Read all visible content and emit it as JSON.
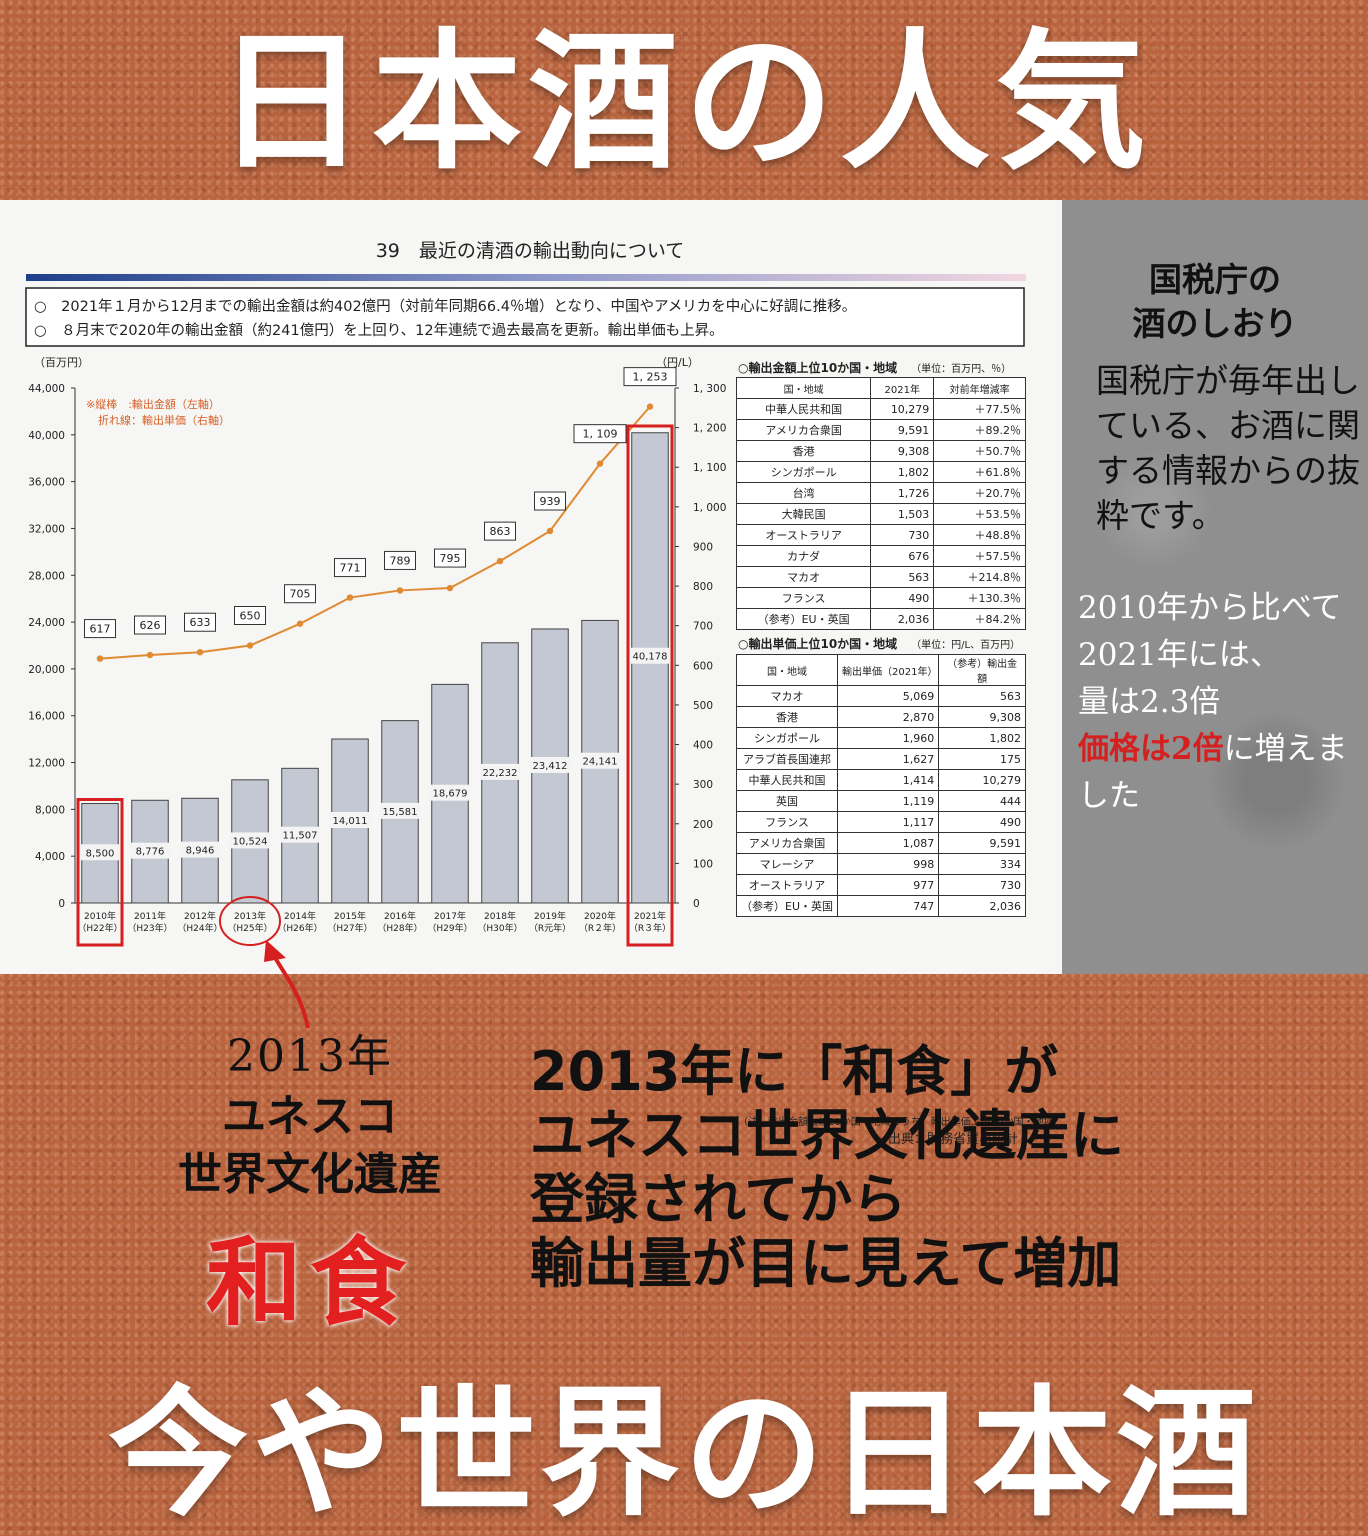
{
  "headline_top": "日本酒の人気",
  "headline_bottom": "今や世界の日本酒",
  "doc": {
    "title": "39　最近の清酒の輸出動向について",
    "bullets": [
      "○　2021年１月から12月までの輸出金額は約402億円（対前年同期66.4％増）となり、中国やアメリカを中心に好調に推移。",
      "○　８月末で2020年の輸出金額（約241億円）を上回り、12年連続で過去最高を更新。輸出単価も上昇。"
    ],
    "left_unit": "（百万円）",
    "right_unit": "（円/L）",
    "legend_lines": [
      "※縦棒　:輸出金額（左軸）",
      "折れ線：輸出単価（右軸）"
    ],
    "source": "出典：財務省貿易統計",
    "note": "（注）輸出金額上位20か国・地域のうち、輸出単価上位10か国・地域"
  },
  "chart_data": {
    "type": "bar",
    "categories": [
      "2010年\n（H22年）",
      "2011年\n（H23年）",
      "2012年\n（H24年）",
      "2013年\n（H25年）",
      "2014年\n（H26年）",
      "2015年\n（H27年）",
      "2016年\n（H28年）",
      "2017年\n（H29年）",
      "2018年\n（H30年）",
      "2019年\n（R元年）",
      "2020年\n（R２年）",
      "2021年\n（R３年）"
    ],
    "series": [
      {
        "name": "輸出金額（左軸）",
        "type": "bar",
        "values": [
          8500,
          8776,
          8946,
          10524,
          11507,
          14011,
          15581,
          18679,
          22232,
          23412,
          24141,
          40178
        ]
      },
      {
        "name": "輸出単価（右軸）",
        "type": "line",
        "axis": "right",
        "values": [
          617,
          626,
          633,
          650,
          705,
          771,
          789,
          795,
          863,
          939,
          1109,
          1253
        ]
      }
    ],
    "ylim": [
      0,
      44000
    ],
    "yticks": [
      "0",
      "4,000",
      "8,000",
      "12,000",
      "16,000",
      "20,000",
      "24,000",
      "28,000",
      "32,000",
      "36,000",
      "40,000",
      "44,000"
    ],
    "y2lim": [
      0,
      1300
    ],
    "y2ticks": [
      "0",
      "100",
      "200",
      "300",
      "400",
      "500",
      "600",
      "700",
      "800",
      "900",
      "1, 000",
      "1, 100",
      "1, 200",
      "1, 300"
    ],
    "bar_labels": [
      "8,500",
      "8,776",
      "8,946",
      "10,524",
      "11,507",
      "14,011",
      "15,581",
      "18,679",
      "22,232",
      "23,412",
      "24,141",
      "40,178"
    ],
    "line_labels": [
      "617",
      "626",
      "633",
      "650",
      "705",
      "771",
      "789",
      "795",
      "863",
      "939",
      "1, 109",
      "1, 253"
    ],
    "highlighted": [
      "2010年\n（H22年）",
      "2021年\n（R３年）"
    ],
    "colors": {
      "bar": "#c3c8d3",
      "line": "#e08a32",
      "highlight": "#d62020"
    }
  },
  "table1": {
    "caption": "○輸出金額上位10か国・地域",
    "unit": "（単位：百万円、％）",
    "headers": [
      "国・地域",
      "2021年",
      "対前年増減率"
    ],
    "rows": [
      [
        "中華人民共和国",
        "10,279",
        "＋77.5％"
      ],
      [
        "アメリカ合衆国",
        "9,591",
        "＋89.2％"
      ],
      [
        "香港",
        "9,308",
        "＋50.7％"
      ],
      [
        "シンガポール",
        "1,802",
        "＋61.8％"
      ],
      [
        "台湾",
        "1,726",
        "＋20.7％"
      ],
      [
        "大韓民国",
        "1,503",
        "＋53.5％"
      ],
      [
        "オーストラリア",
        "730",
        "＋48.8％"
      ],
      [
        "カナダ",
        "676",
        "＋57.5％"
      ],
      [
        "マカオ",
        "563",
        "＋214.8％"
      ],
      [
        "フランス",
        "490",
        "＋130.3％"
      ],
      [
        "（参考）EU・英国",
        "2,036",
        "＋84.2％"
      ]
    ]
  },
  "table2": {
    "caption": "○輸出単価上位10か国・地域",
    "unit": "（単位：円/L、百万円）",
    "headers": [
      "国・地域",
      "輸出単価（2021年）",
      "（参考）輸出金額"
    ],
    "rows": [
      [
        "マカオ",
        "5,069",
        "563"
      ],
      [
        "香港",
        "2,870",
        "9,308"
      ],
      [
        "シンガポール",
        "1,960",
        "1,802"
      ],
      [
        "アラブ首長国連邦",
        "1,627",
        "175"
      ],
      [
        "中華人民共和国",
        "1,414",
        "10,279"
      ],
      [
        "英国",
        "1,119",
        "444"
      ],
      [
        "フランス",
        "1,117",
        "490"
      ],
      [
        "アメリカ合衆国",
        "1,087",
        "9,591"
      ],
      [
        "マレーシア",
        "998",
        "334"
      ],
      [
        "オーストラリア",
        "977",
        "730"
      ],
      [
        "（参考）EU・英国",
        "747",
        "2,036"
      ]
    ]
  },
  "side": {
    "heading_1": "国税庁の",
    "heading_2": "酒のしおり",
    "body": "国税庁が毎年出している、お酒に関する情報からの抜粋です。",
    "note_1": "2010年から比べて2021年には、",
    "note_2": "量は2.3倍",
    "note_3_red": "価格は2倍",
    "note_3_rest": "に増えました"
  },
  "left_block": {
    "year": "2013年",
    "line_2": "ユネスコ",
    "line_3": "世界文化遺産",
    "washoku": "和食"
  },
  "right_block": [
    "2013年に「和食」が",
    "ユネスコ世界文化遺産に",
    "登録されてから",
    "輸出量が目に見えて増加"
  ]
}
